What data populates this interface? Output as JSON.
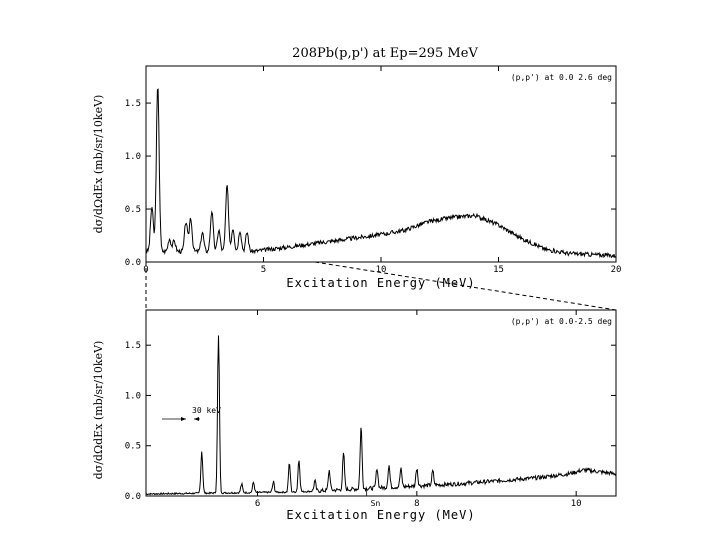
{
  "chart_data": [
    {
      "type": "line",
      "title": "208Pb(p,p') at Ep=295 MeV",
      "annotation": "(p,p') at 0.0 2.6 deg",
      "xlabel": "Excitation Energy (MeV)",
      "ylabel": "dσ/dΩdEx (mb/sr/10keV)",
      "xlim": [
        0,
        20
      ],
      "ylim": [
        0,
        1.85
      ],
      "x_ticks": [
        0,
        5,
        10,
        15,
        20
      ],
      "y_ticks": [
        0.0,
        0.5,
        1.0,
        1.5
      ],
      "x_tick_labels": [
        "0",
        "5",
        "10",
        "15",
        "20"
      ],
      "y_tick_labels": [
        "0.0",
        "0.5",
        "1.0",
        "1.5"
      ],
      "peaks": [
        {
          "x": 0.25,
          "y": 0.42
        },
        {
          "x": 0.5,
          "y": 1.56
        },
        {
          "x": 1.0,
          "y": 0.12
        },
        {
          "x": 1.2,
          "y": 0.1
        },
        {
          "x": 1.7,
          "y": 0.28
        },
        {
          "x": 1.9,
          "y": 0.32
        },
        {
          "x": 2.4,
          "y": 0.18
        },
        {
          "x": 2.8,
          "y": 0.38
        },
        {
          "x": 3.1,
          "y": 0.2
        },
        {
          "x": 3.45,
          "y": 0.62
        },
        {
          "x": 3.7,
          "y": 0.22
        },
        {
          "x": 4.0,
          "y": 0.2
        },
        {
          "x": 4.3,
          "y": 0.18
        }
      ],
      "continuum": [
        [
          4.5,
          0.1
        ],
        [
          6,
          0.14
        ],
        [
          8,
          0.2
        ],
        [
          10,
          0.26
        ],
        [
          11,
          0.3
        ],
        [
          12,
          0.38
        ],
        [
          13,
          0.42
        ],
        [
          14,
          0.44
        ],
        [
          15,
          0.35
        ],
        [
          16,
          0.22
        ],
        [
          17,
          0.12
        ],
        [
          18,
          0.08
        ],
        [
          20,
          0.06
        ]
      ]
    },
    {
      "type": "line",
      "annotation": "(p,p') at 0.0-2.5 deg",
      "xlabel": "Excitation Energy (MeV)",
      "ylabel": "dσ/dΩdEx (mb/sr/10keV)",
      "xlim": [
        4.6,
        10.5
      ],
      "ylim": [
        0,
        1.85
      ],
      "x_ticks": [
        6,
        8,
        10
      ],
      "y_ticks": [
        0.0,
        0.5,
        1.0,
        1.5
      ],
      "x_tick_labels": [
        "6",
        "8",
        "10"
      ],
      "y_tick_labels": [
        "0.0",
        "0.5",
        "1.0",
        "1.5"
      ],
      "resolution_label": "30 keV",
      "threshold_label": "Sn",
      "threshold_x": 7.37,
      "peaks": [
        {
          "x": 5.3,
          "y": 0.42
        },
        {
          "x": 5.51,
          "y": 1.56
        },
        {
          "x": 5.8,
          "y": 0.08
        },
        {
          "x": 5.95,
          "y": 0.1
        },
        {
          "x": 6.2,
          "y": 0.1
        },
        {
          "x": 6.4,
          "y": 0.28
        },
        {
          "x": 6.52,
          "y": 0.32
        },
        {
          "x": 6.72,
          "y": 0.1
        },
        {
          "x": 6.9,
          "y": 0.2
        },
        {
          "x": 7.08,
          "y": 0.36
        },
        {
          "x": 7.3,
          "y": 0.62
        },
        {
          "x": 7.5,
          "y": 0.2
        },
        {
          "x": 7.65,
          "y": 0.22
        },
        {
          "x": 7.8,
          "y": 0.18
        },
        {
          "x": 8.0,
          "y": 0.18
        },
        {
          "x": 8.2,
          "y": 0.14
        }
      ],
      "continuum": [
        [
          4.6,
          0.02
        ],
        [
          5.5,
          0.03
        ],
        [
          6.5,
          0.04
        ],
        [
          7.5,
          0.08
        ],
        [
          8.0,
          0.1
        ],
        [
          8.5,
          0.12
        ],
        [
          9.0,
          0.15
        ],
        [
          9.5,
          0.18
        ],
        [
          9.9,
          0.22
        ],
        [
          10.1,
          0.26
        ],
        [
          10.5,
          0.22
        ]
      ]
    }
  ]
}
